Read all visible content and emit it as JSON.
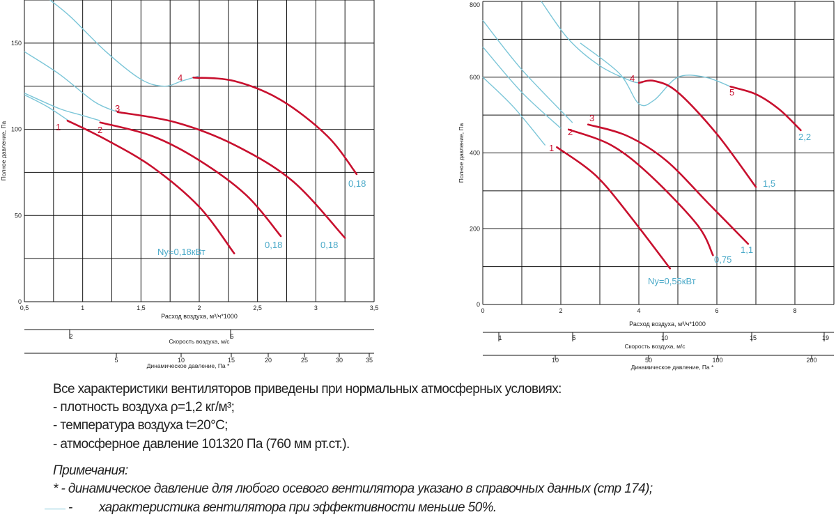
{
  "chart_data": [
    {
      "type": "line",
      "title": "",
      "xlabel": "Расход воздуха, м³/ч*1000",
      "ylabel": "Полное давление, Па",
      "xlim": [
        0.5,
        3.5
      ],
      "ylim": [
        0,
        175
      ],
      "x_ticks": [
        "0,5",
        "1",
        "1,5",
        "2",
        "2,5",
        "3",
        "3,5"
      ],
      "y_ticks": [
        "0",
        "50",
        "100",
        "150"
      ],
      "grid": true,
      "scale_velocity": {
        "label": "Скорость воздуха, м/с",
        "ticks": [
          "2",
          "5"
        ]
      },
      "scale_dynamic": {
        "label": "Динамическое давление, Па *",
        "ticks": [
          "5",
          "10",
          "15",
          "20",
          "25",
          "30",
          "35"
        ]
      },
      "low_eff_curves": [
        [
          [
            0.5,
            120
          ],
          [
            0.7,
            113
          ],
          [
            0.9,
            104
          ]
        ],
        [
          [
            0.5,
            121
          ],
          [
            0.8,
            112
          ],
          [
            1.0,
            108
          ],
          [
            1.15,
            105
          ]
        ],
        [
          [
            0.5,
            145
          ],
          [
            0.8,
            132
          ],
          [
            1.1,
            116
          ],
          [
            1.3,
            110
          ]
        ],
        [
          [
            0.72,
            175
          ],
          [
            0.9,
            165
          ],
          [
            1.2,
            145
          ],
          [
            1.5,
            129
          ],
          [
            1.7,
            125
          ],
          [
            1.85,
            128
          ],
          [
            2.0,
            131
          ]
        ]
      ],
      "series": [
        {
          "name": "1",
          "power": "Ny=0,18кВт",
          "points": [
            [
              0.87,
              105
            ],
            [
              1.2,
              94
            ],
            [
              1.6,
              78
            ],
            [
              2.0,
              55
            ],
            [
              2.3,
              28
            ]
          ]
        },
        {
          "name": "2",
          "power": "0,18",
          "points": [
            [
              1.15,
              104
            ],
            [
              1.6,
              96
            ],
            [
              2.0,
              82
            ],
            [
              2.4,
              62
            ],
            [
              2.7,
              38
            ]
          ]
        },
        {
          "name": "3",
          "power": "0,18",
          "points": [
            [
              1.3,
              110
            ],
            [
              1.8,
              104
            ],
            [
              2.3,
              91
            ],
            [
              2.8,
              70
            ],
            [
              3.25,
              37
            ]
          ]
        },
        {
          "name": "4",
          "power": "0,18",
          "points": [
            [
              1.95,
              130
            ],
            [
              2.3,
              128
            ],
            [
              2.7,
              117
            ],
            [
              3.1,
              96
            ],
            [
              3.35,
              74
            ]
          ]
        }
      ]
    },
    {
      "type": "line",
      "title": "",
      "xlabel": "Расход воздуха, м³/ч*1000",
      "ylabel": "Полное давление, Па",
      "xlim": [
        0,
        9
      ],
      "ylim": [
        0,
        800
      ],
      "x_ticks": [
        "0",
        "2",
        "4",
        "6",
        "8"
      ],
      "y_ticks": [
        "0",
        "200",
        "400",
        "600",
        "800"
      ],
      "grid": true,
      "scale_velocity": {
        "label": "Скорость воздуха, м/с",
        "ticks": [
          "1",
          "5",
          "10",
          "15",
          "19"
        ]
      },
      "scale_dynamic": {
        "label": "Динамическое давление, Па *",
        "ticks": [
          "10",
          "50",
          "100",
          "200"
        ]
      },
      "low_eff_curves": [
        [
          [
            0,
            600
          ],
          [
            0.8,
            520
          ],
          [
            1.6,
            420
          ]
        ],
        [
          [
            0,
            680
          ],
          [
            1.0,
            560
          ],
          [
            2.0,
            465
          ]
        ],
        [
          [
            0,
            750
          ],
          [
            1.0,
            620
          ],
          [
            2.3,
            480
          ]
        ],
        [
          [
            1.5,
            800
          ],
          [
            2.2,
            700
          ],
          [
            3.0,
            630
          ],
          [
            3.8,
            590
          ],
          [
            4.1,
            585
          ]
        ],
        [
          [
            2.5,
            690
          ],
          [
            3.5,
            610
          ],
          [
            4.0,
            530
          ],
          [
            4.4,
            540
          ],
          [
            5.0,
            600
          ],
          [
            5.7,
            600
          ],
          [
            6.35,
            575
          ]
        ],
        [
          [
            8.0,
            475
          ],
          [
            8.15,
            460
          ]
        ]
      ],
      "series": [
        {
          "name": "1",
          "power": "Ny=0,55кВт",
          "points": [
            [
              1.9,
              415
            ],
            [
              2.9,
              340
            ],
            [
              3.8,
              230
            ],
            [
              4.8,
              95
            ]
          ]
        },
        {
          "name": "2",
          "power": "0,75",
          "points": [
            [
              2.2,
              462
            ],
            [
              3.3,
              420
            ],
            [
              4.3,
              340
            ],
            [
              5.5,
              210
            ],
            [
              5.9,
              130
            ]
          ]
        },
        {
          "name": "3",
          "power": "1,1",
          "points": [
            [
              2.7,
              475
            ],
            [
              3.7,
              445
            ],
            [
              4.7,
              380
            ],
            [
              5.8,
              265
            ],
            [
              6.8,
              160
            ]
          ]
        },
        {
          "name": "4",
          "power": "1,5",
          "points": [
            [
              4.0,
              585
            ],
            [
              4.4,
              590
            ],
            [
              5.0,
              560
            ],
            [
              6.0,
              450
            ],
            [
              7.0,
              310
            ]
          ]
        },
        {
          "name": "5",
          "power": "2,2",
          "points": [
            [
              6.35,
              575
            ],
            [
              7.0,
              555
            ],
            [
              7.6,
              515
            ],
            [
              8.15,
              460
            ]
          ]
        }
      ]
    }
  ],
  "notes": {
    "line1": "Все характеристики вентиляторов приведены при нормальных атмосферных условиях:",
    "line2": "- плотность  воздуха ρ=1,2 кг/м³;",
    "line3": "- температура воздуха t=20°С;",
    "line4": "- атмосферное давление 101320 Па (760 мм рт.ст.).",
    "title": "Примечания:",
    "note1": "*  - динамическое давление для любого осевого вентилятора указано в справочных данных (стр 174);",
    "note2_dash": "-",
    "note2": "характеристика вентилятора при эффективности меньше 50%."
  },
  "colors": {
    "curve": "#c8102e",
    "low_eff": "#7cc6d8",
    "grid": "#111111",
    "label_red": "#c8102e",
    "label_blue": "#4aa9c8"
  }
}
